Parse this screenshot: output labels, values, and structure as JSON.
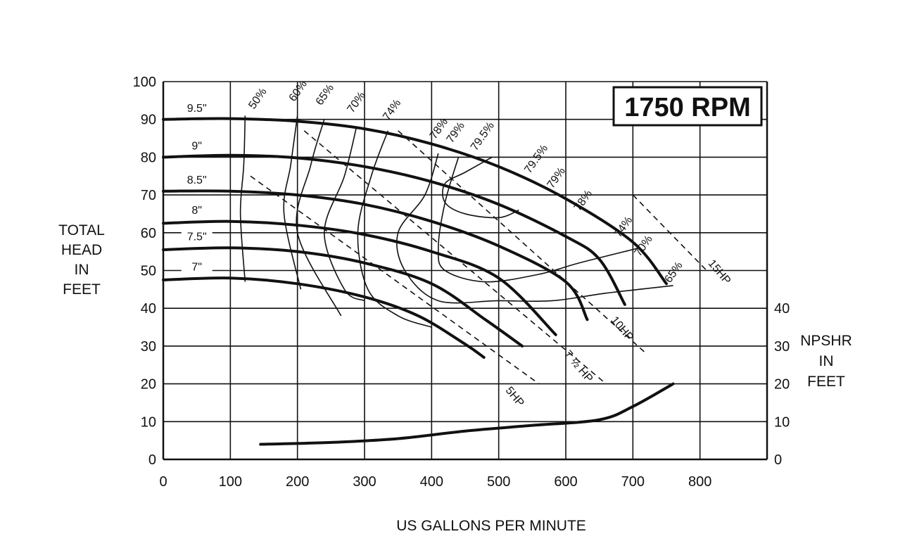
{
  "chart_data": {
    "type": "line",
    "title": "1750 RPM",
    "xlabel": "US GALLONS PER MINUTE",
    "ylabel": [
      "TOTAL",
      "HEAD",
      "IN",
      "FEET"
    ],
    "y2label": [
      "NPSHR",
      "IN",
      "FEET"
    ],
    "xlim": [
      0,
      900
    ],
    "ylim": [
      0,
      100
    ],
    "xticks": [
      "0",
      "100",
      "200",
      "300",
      "400",
      "500",
      "600",
      "700",
      "800"
    ],
    "yticks": [
      "0",
      "10",
      "20",
      "30",
      "40",
      "50",
      "60",
      "70",
      "80",
      "90",
      "100"
    ],
    "y2ticks": [
      "0",
      "10",
      "20",
      "30",
      "40"
    ],
    "grid": true,
    "impeller_curves": [
      {
        "name": "9.5\"",
        "points": [
          [
            0,
            90
          ],
          [
            100,
            90.2
          ],
          [
            200,
            89.5
          ],
          [
            300,
            87.5
          ],
          [
            400,
            83.5
          ],
          [
            500,
            77.5
          ],
          [
            600,
            69
          ],
          [
            700,
            57.5
          ],
          [
            750,
            46.5
          ]
        ]
      },
      {
        "name": "9\"",
        "points": [
          [
            0,
            80
          ],
          [
            100,
            80.5
          ],
          [
            200,
            79.8
          ],
          [
            300,
            77.5
          ],
          [
            400,
            73.5
          ],
          [
            500,
            67.5
          ],
          [
            600,
            59
          ],
          [
            650,
            53
          ],
          [
            688,
            41
          ]
        ]
      },
      {
        "name": "8.5\"",
        "points": [
          [
            0,
            71
          ],
          [
            100,
            71
          ],
          [
            200,
            70
          ],
          [
            300,
            67.5
          ],
          [
            400,
            63
          ],
          [
            500,
            56.5
          ],
          [
            600,
            47
          ],
          [
            632,
            37
          ]
        ]
      },
      {
        "name": "8\"",
        "points": [
          [
            0,
            62.5
          ],
          [
            100,
            63
          ],
          [
            200,
            62
          ],
          [
            300,
            59.5
          ],
          [
            400,
            55
          ],
          [
            500,
            48
          ],
          [
            585,
            33
          ]
        ]
      },
      {
        "name": "7.5\"",
        "points": [
          [
            0,
            55.5
          ],
          [
            100,
            56
          ],
          [
            200,
            55
          ],
          [
            300,
            52
          ],
          [
            400,
            46.5
          ],
          [
            480,
            37
          ],
          [
            535,
            30
          ]
        ]
      },
      {
        "name": "7\"",
        "points": [
          [
            0,
            47.5
          ],
          [
            100,
            48
          ],
          [
            200,
            46.5
          ],
          [
            300,
            43
          ],
          [
            380,
            38
          ],
          [
            450,
            30.5
          ],
          [
            478,
            27
          ]
        ]
      }
    ],
    "efficiency_curves": [
      {
        "name": "50%",
        "points": [
          [
            122,
            91
          ],
          [
            120,
            78
          ],
          [
            115,
            65
          ],
          [
            122,
            47
          ]
        ]
      },
      {
        "name": "60%",
        "points": [
          [
            200,
            91
          ],
          [
            190,
            78
          ],
          [
            180,
            65
          ],
          [
            205,
            45
          ]
        ]
      },
      {
        "name": "65%",
        "points": [
          [
            240,
            90
          ],
          [
            220,
            78
          ],
          [
            200,
            60
          ],
          [
            265,
            38
          ]
        ]
      },
      {
        "name": "70%",
        "points": [
          [
            288,
            88
          ],
          [
            270,
            75
          ],
          [
            240,
            60
          ],
          [
            270,
            45
          ],
          [
            300,
            42
          ]
        ]
      },
      {
        "name": "74%",
        "points": [
          [
            335,
            87
          ],
          [
            310,
            75
          ],
          [
            290,
            60
          ],
          [
            305,
            45
          ],
          [
            350,
            38
          ],
          [
            400,
            35
          ]
        ]
      },
      {
        "name": "78%",
        "points": [
          [
            410,
            81
          ],
          [
            390,
            70
          ],
          [
            350,
            60
          ],
          [
            360,
            50
          ],
          [
            410,
            42
          ],
          [
            500,
            42
          ],
          [
            580,
            42
          ],
          [
            660,
            44
          ],
          [
            760,
            46
          ]
        ]
      },
      {
        "name": "79%",
        "points": [
          [
            440,
            80
          ],
          [
            420,
            68
          ],
          [
            410,
            56
          ],
          [
            420,
            50
          ],
          [
            480,
            47
          ],
          [
            560,
            49
          ],
          [
            620,
            52
          ],
          [
            710,
            56
          ]
        ]
      },
      {
        "name": "79.5%",
        "points": [
          [
            490,
            80
          ],
          [
            450,
            76
          ],
          [
            420,
            73
          ],
          [
            420,
            68
          ],
          [
            450,
            65
          ],
          [
            500,
            64
          ],
          [
            530,
            66
          ]
        ]
      }
    ],
    "power_lines": [
      {
        "name": "5HP",
        "points": [
          [
            130,
            75
          ],
          [
            560,
            20
          ]
        ]
      },
      {
        "name": "7 ½ HP",
        "points": [
          [
            210,
            87
          ],
          [
            660,
            20
          ]
        ]
      },
      {
        "name": "10HP",
        "points": [
          [
            350,
            87
          ],
          [
            720,
            28
          ]
        ]
      },
      {
        "name": "15HP",
        "points": [
          [
            700,
            70
          ],
          [
            810,
            50
          ]
        ]
      }
    ],
    "npshr": {
      "name": "NPSHR",
      "points": [
        [
          145,
          4
        ],
        [
          250,
          4.5
        ],
        [
          350,
          5.5
        ],
        [
          450,
          7.5
        ],
        [
          550,
          9
        ],
        [
          650,
          10.5
        ],
        [
          700,
          14
        ],
        [
          760,
          20
        ]
      ]
    },
    "annotations": [
      {
        "text": "9.5\"",
        "x": 50,
        "y": 92
      },
      {
        "text": "9\"",
        "x": 50,
        "y": 82
      },
      {
        "text": "8.5\"",
        "x": 50,
        "y": 73
      },
      {
        "text": "8\"",
        "x": 50,
        "y": 65
      },
      {
        "text": "7.5\"",
        "x": 50,
        "y": 58
      },
      {
        "text": "7\"",
        "x": 50,
        "y": 50
      },
      {
        "text": "50%",
        "x": 145,
        "y": 95
      },
      {
        "text": "60%",
        "x": 205,
        "y": 97
      },
      {
        "text": "65%",
        "x": 245,
        "y": 96
      },
      {
        "text": "70%",
        "x": 292,
        "y": 94
      },
      {
        "text": "74%",
        "x": 345,
        "y": 92
      },
      {
        "text": "78%",
        "x": 415,
        "y": 87
      },
      {
        "text": "79%",
        "x": 440,
        "y": 86
      },
      {
        "text": "79.5%",
        "x": 480,
        "y": 85
      },
      {
        "text": "79.5%",
        "x": 560,
        "y": 79
      },
      {
        "text": "79%",
        "x": 590,
        "y": 74
      },
      {
        "text": "78%",
        "x": 630,
        "y": 68
      },
      {
        "text": "74%",
        "x": 690,
        "y": 61
      },
      {
        "text": "70%",
        "x": 720,
        "y": 56
      },
      {
        "text": "65%",
        "x": 765,
        "y": 49
      },
      {
        "text": "15HP",
        "x": 825,
        "y": 49
      },
      {
        "text": "10HP",
        "x": 680,
        "y": 34
      },
      {
        "text": "7 ½ HP",
        "x": 615,
        "y": 24
      },
      {
        "text": "5HP",
        "x": 520,
        "y": 16
      }
    ]
  }
}
